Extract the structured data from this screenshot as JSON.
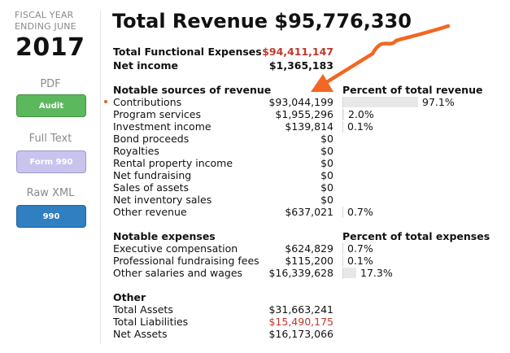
{
  "fiscal": {
    "line1": "FISCAL YEAR",
    "line2": "ENDING JUNE",
    "year": "2017"
  },
  "sidebar": {
    "pdf_label": "PDF",
    "pdf_button": "Audit",
    "fulltext_label": "Full Text",
    "fulltext_button": "Form 990",
    "rawxml_label": "Raw XML",
    "rawxml_button": "990"
  },
  "summary": {
    "title": "Total Revenue $95,776,330",
    "functional_expenses_label": "Total Functional Expenses",
    "functional_expenses_value": "$94,411,147",
    "net_income_label": "Net income",
    "net_income_value": "$1,365,183"
  },
  "revenue": {
    "header": "Notable sources of revenue",
    "pct_header": "Percent of total revenue",
    "rows": [
      {
        "label": "Contributions",
        "value": "$93,044,199",
        "pct": "97.1%",
        "pct_value": 97.1
      },
      {
        "label": "Program services",
        "value": "$1,955,296",
        "pct": "2.0%",
        "pct_value": 2.0
      },
      {
        "label": "Investment income",
        "value": "$139,814",
        "pct": "0.1%",
        "pct_value": 0.1
      },
      {
        "label": "Bond proceeds",
        "value": "$0",
        "pct": "",
        "pct_value": 0
      },
      {
        "label": "Royalties",
        "value": "$0",
        "pct": "",
        "pct_value": 0
      },
      {
        "label": "Rental property income",
        "value": "$0",
        "pct": "",
        "pct_value": 0
      },
      {
        "label": "Net fundraising",
        "value": "$0",
        "pct": "",
        "pct_value": 0
      },
      {
        "label": "Sales of assets",
        "value": "$0",
        "pct": "",
        "pct_value": 0
      },
      {
        "label": "Net inventory sales",
        "value": "$0",
        "pct": "",
        "pct_value": 0
      },
      {
        "label": "Other revenue",
        "value": "$637,021",
        "pct": "0.7%",
        "pct_value": 0.7
      }
    ]
  },
  "expenses": {
    "header": "Notable expenses",
    "pct_header": "Percent of total expenses",
    "rows": [
      {
        "label": "Executive compensation",
        "value": "$624,829",
        "pct": "0.7%",
        "pct_value": 0.7
      },
      {
        "label": "Professional fundraising fees",
        "value": "$115,200",
        "pct": "0.1%",
        "pct_value": 0.1
      },
      {
        "label": "Other salaries and wages",
        "value": "$16,339,628",
        "pct": "17.3%",
        "pct_value": 17.3
      }
    ]
  },
  "other": {
    "header": "Other",
    "rows": [
      {
        "label": "Total Assets",
        "value": "$31,663,241"
      },
      {
        "label": "Total Liabilities",
        "value": "$15,490,175"
      },
      {
        "label": "Net Assets",
        "value": "$16,173,066"
      }
    ]
  },
  "colors": {
    "accent_red": "#c0392b",
    "arrow_orange": "#f26722",
    "audit_green": "#5cb85c",
    "form_purple": "#c9c4ee",
    "xml_blue": "#2f7fc1"
  }
}
